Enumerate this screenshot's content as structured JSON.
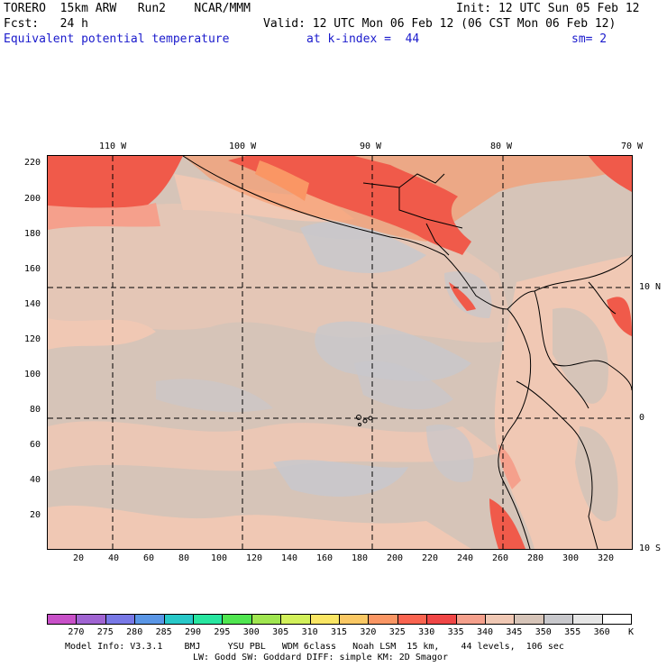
{
  "header": {
    "model": "TORERO  15km ARW   Run2    NCAR/MMM",
    "init": "Init: 12 UTC Sun 05 Feb 12",
    "fcst": "Fcst:   24 h",
    "valid": "Valid: 12 UTC Mon 06 Feb 12 (06 CST Mon 06 Feb 12)",
    "field": "Equivalent potential temperature",
    "level": "at k-index =  44",
    "smooth": "sm= 2"
  },
  "map": {
    "top_labels": [
      "110 W",
      "100 W",
      "90 W",
      "80 W",
      "70 W"
    ],
    "right_labels": [
      "10 N",
      "0",
      "10 S"
    ],
    "y_ticks": [
      "220",
      "200",
      "180",
      "160",
      "140",
      "120",
      "100",
      "80",
      "60",
      "40",
      "20"
    ],
    "x_ticks": [
      "20",
      "40",
      "60",
      "80",
      "100",
      "120",
      "140",
      "160",
      "180",
      "200",
      "220",
      "240",
      "260",
      "280",
      "300",
      "320"
    ]
  },
  "colorbar": {
    "labels": [
      "270",
      "275",
      "280",
      "285",
      "290",
      "295",
      "300",
      "305",
      "310",
      "315",
      "320",
      "325",
      "330",
      "335",
      "340",
      "345",
      "350",
      "355",
      "360"
    ],
    "unit": "K",
    "colors": [
      "#c850c8",
      "#a064d2",
      "#7878e6",
      "#5a96e6",
      "#28c8c8",
      "#28e6a0",
      "#50e650",
      "#a0e650",
      "#d2f05a",
      "#fae664",
      "#fac864",
      "#fa9664",
      "#fa6450",
      "#f04646",
      "#f5a08c",
      "#f0c8b4",
      "#d6c4b8",
      "#c8c8cc",
      "#e6e6e6",
      "#ffffff"
    ]
  },
  "footer": {
    "line1": "Model Info: V3.3.1    BMJ     YSU PBL   WDM 6class   Noah LSM  15 km,    44 levels,  106 sec",
    "line2": "LW: Godd SW: Goddard DIFF: simple KM: 2D Smagor"
  }
}
